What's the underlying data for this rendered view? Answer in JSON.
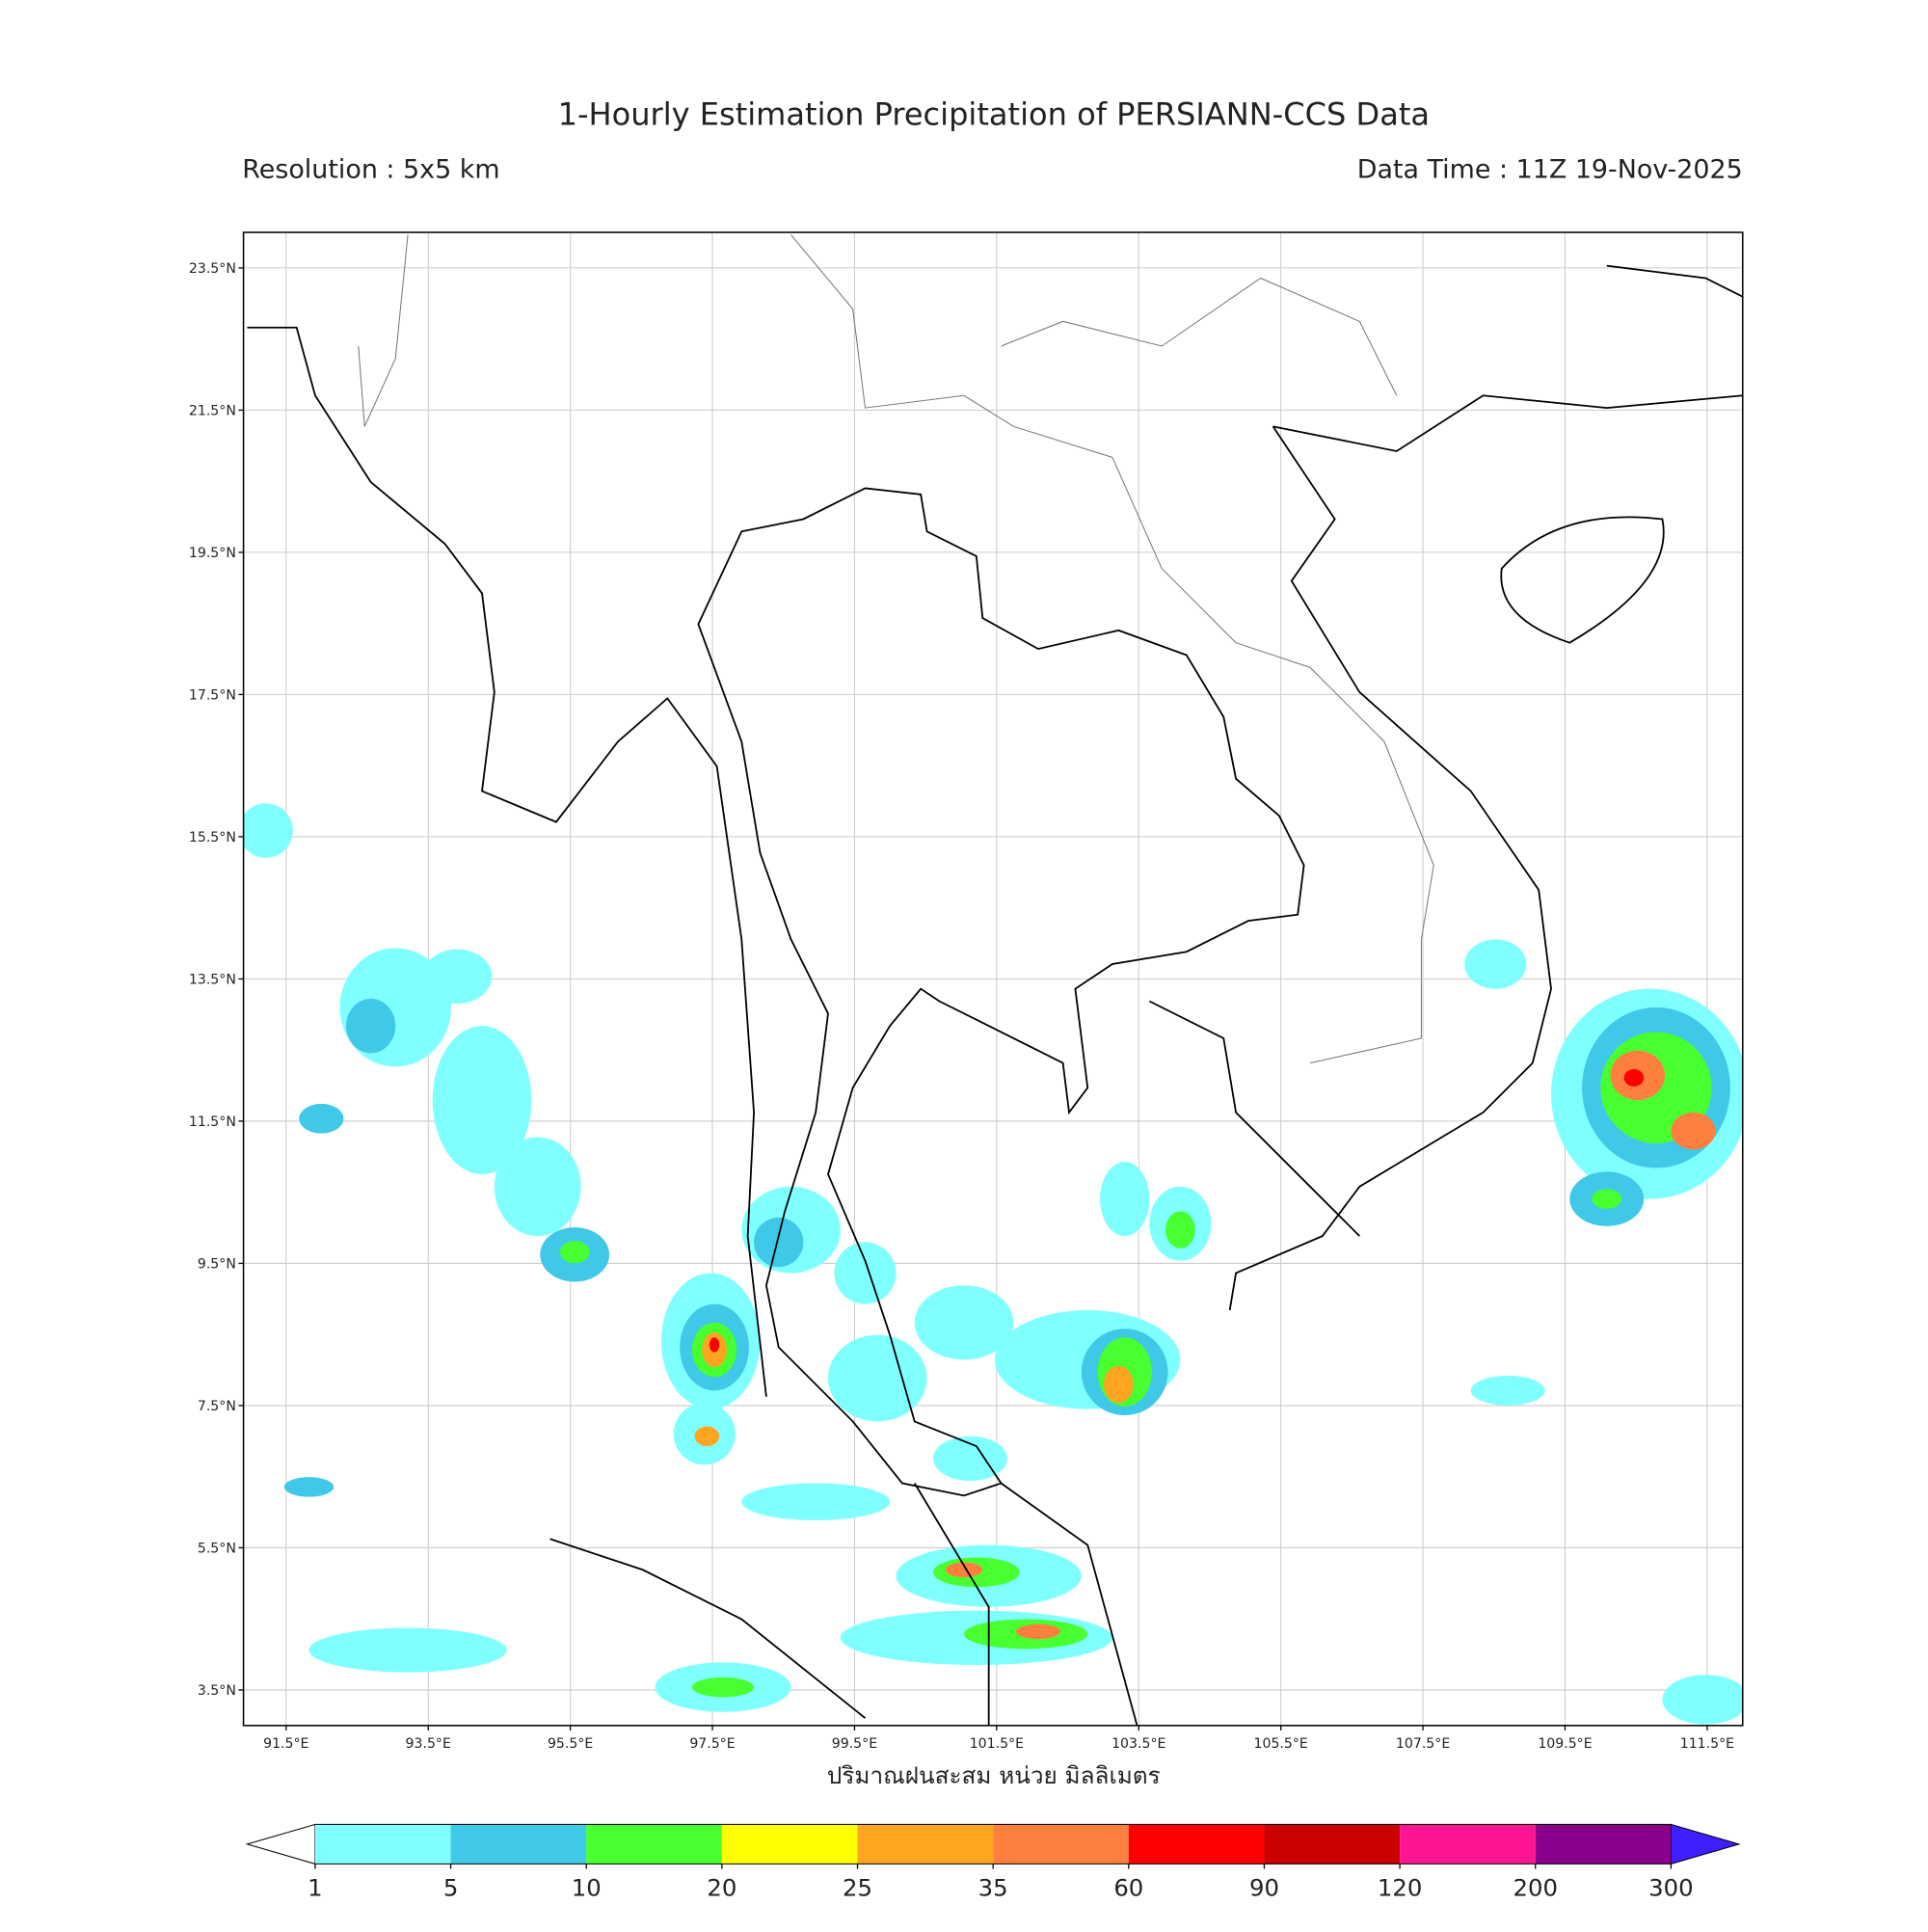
{
  "title": "1-Hourly Estimation Precipitation of PERSIANN-CCS Data",
  "resolution": "Resolution : 5x5 km",
  "data_time": "Data Time : 11Z 19-Nov-2025",
  "map": {
    "lon_range": [
      90.9,
      112.0
    ],
    "lat_range": [
      3.0,
      24.0
    ],
    "lon_ticks": [
      {
        "value": 91.5,
        "label": "91.5°E"
      },
      {
        "value": 93.5,
        "label": "93.5°E"
      },
      {
        "value": 95.5,
        "label": "95.5°E"
      },
      {
        "value": 97.5,
        "label": "97.5°E"
      },
      {
        "value": 99.5,
        "label": "99.5°E"
      },
      {
        "value": 101.5,
        "label": "101.5°E"
      },
      {
        "value": 103.5,
        "label": "103.5°E"
      },
      {
        "value": 105.5,
        "label": "105.5°E"
      },
      {
        "value": 107.5,
        "label": "107.5°E"
      },
      {
        "value": 109.5,
        "label": "109.5°E"
      },
      {
        "value": 111.5,
        "label": "111.5°E"
      }
    ],
    "lat_ticks": [
      {
        "value": 23.5,
        "label": "23.5°N"
      },
      {
        "value": 21.5,
        "label": "21.5°N"
      },
      {
        "value": 19.5,
        "label": "19.5°N"
      },
      {
        "value": 17.5,
        "label": "17.5°N"
      },
      {
        "value": 15.5,
        "label": "15.5°N"
      },
      {
        "value": 13.5,
        "label": "13.5°N"
      },
      {
        "value": 11.5,
        "label": "11.5°N"
      },
      {
        "value": 9.5,
        "label": "9.5°N"
      },
      {
        "value": 7.5,
        "label": "7.5°N"
      },
      {
        "value": 5.5,
        "label": "5.5°N"
      },
      {
        "value": 3.5,
        "label": "3.5°N"
      }
    ]
  },
  "colorbar": {
    "label": "ปริมาณฝนสะสม หน่วย มิลลิเมตร",
    "ticks": [
      1,
      5,
      10,
      20,
      25,
      35,
      60,
      90,
      120,
      200,
      300
    ],
    "colors": [
      "#80ffff",
      "#40c8e8",
      "#48ff30",
      "#ffff00",
      "#ffa520",
      "#ff7f3f",
      "#ff0000",
      "#cd0000",
      "#ff1493",
      "#8b008b"
    ],
    "under_color": "#ffffff",
    "over_color": "#3f1fff"
  }
}
